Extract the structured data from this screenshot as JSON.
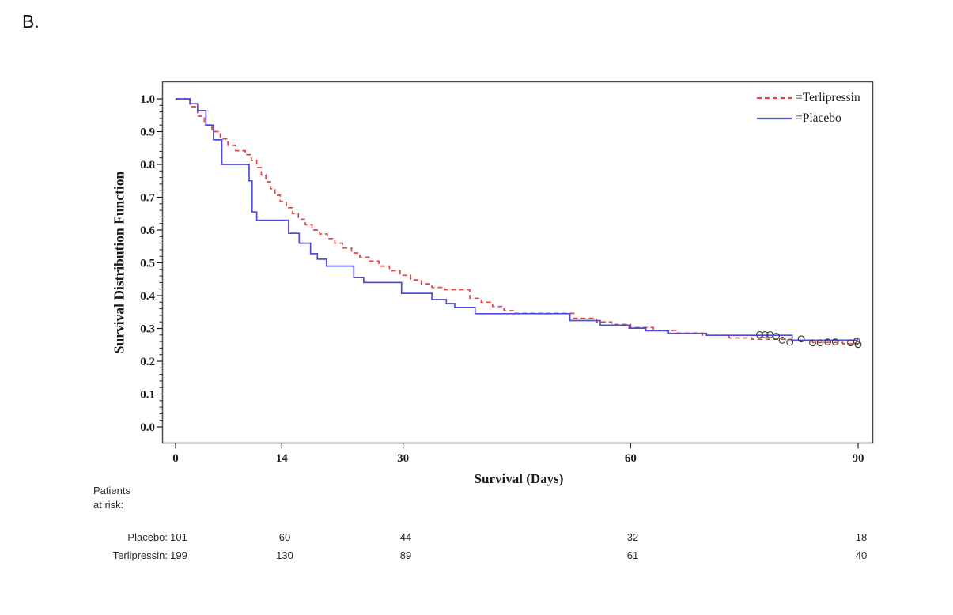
{
  "panel_label": "B.",
  "chart_data": {
    "type": "line",
    "subtype": "kaplan-meier-step-survival",
    "title": "",
    "xlabel": "Survival (Days)",
    "ylabel": "Survival Distribution Function",
    "xlim": [
      -1.8,
      91.9
    ],
    "ylim": [
      -0.05,
      1.05
    ],
    "x_end": 90,
    "grid": false,
    "xticks": [
      0,
      14,
      30,
      60,
      90
    ],
    "xtick_labels": [
      "0",
      "14",
      "30",
      "60",
      "90"
    ],
    "yticks": [
      0,
      0.1,
      0.2,
      0.3,
      0.4,
      0.5,
      0.6,
      0.7,
      0.8,
      0.9,
      1.0
    ],
    "ytick_labels": [
      "0.0",
      "0.1",
      "0.2",
      "0.3",
      "0.4",
      "0.5",
      "0.6",
      "0.7",
      "0.8",
      "0.9",
      "1.0"
    ],
    "legend_position": "top-right-inside",
    "legend": [
      {
        "label": "=Terlipressin",
        "color": "#e84343",
        "style": "dashed"
      },
      {
        "label": "=Placebo",
        "color": "#4d4dd8",
        "style": "solid"
      }
    ],
    "series": [
      {
        "name": "Terlipressin",
        "color": "#e84343",
        "style": "dashed",
        "step": true,
        "points": [
          [
            0,
            1.0
          ],
          [
            1.9,
            0.976
          ],
          [
            2.9,
            0.947
          ],
          [
            3.8,
            0.92
          ],
          [
            4.8,
            0.9
          ],
          [
            5.9,
            0.878
          ],
          [
            6.9,
            0.858
          ],
          [
            7.9,
            0.842
          ],
          [
            9.2,
            0.83
          ],
          [
            10.0,
            0.812
          ],
          [
            10.7,
            0.79
          ],
          [
            11.3,
            0.768
          ],
          [
            11.9,
            0.747
          ],
          [
            12.5,
            0.726
          ],
          [
            13.1,
            0.706
          ],
          [
            13.8,
            0.687
          ],
          [
            14.6,
            0.668
          ],
          [
            15.4,
            0.65
          ],
          [
            16.2,
            0.633
          ],
          [
            17.1,
            0.616
          ],
          [
            18.0,
            0.6
          ],
          [
            19.0,
            0.588
          ],
          [
            20.0,
            0.574
          ],
          [
            21.0,
            0.56
          ],
          [
            22.0,
            0.545
          ],
          [
            23.2,
            0.53
          ],
          [
            24.3,
            0.517
          ],
          [
            25.5,
            0.505
          ],
          [
            26.8,
            0.49
          ],
          [
            28.2,
            0.476
          ],
          [
            29.6,
            0.462
          ],
          [
            31.0,
            0.448
          ],
          [
            32.4,
            0.436
          ],
          [
            33.8,
            0.425
          ],
          [
            35.5,
            0.418
          ],
          [
            38.8,
            0.392
          ],
          [
            40.3,
            0.38
          ],
          [
            41.8,
            0.367
          ],
          [
            43.3,
            0.354
          ],
          [
            44.8,
            0.346
          ],
          [
            52.5,
            0.331
          ],
          [
            55.5,
            0.32
          ],
          [
            57.5,
            0.312
          ],
          [
            60,
            0.303
          ],
          [
            63,
            0.294
          ],
          [
            66,
            0.286
          ],
          [
            69.5,
            0.279
          ],
          [
            73,
            0.271
          ],
          [
            76,
            0.267
          ],
          [
            80.5,
            0.262
          ],
          [
            84,
            0.257
          ],
          [
            88,
            0.253
          ]
        ]
      },
      {
        "name": "Placebo",
        "color": "#4d4dd8",
        "style": "solid",
        "step": true,
        "points": [
          [
            0,
            1.0
          ],
          [
            1.9,
            0.985
          ],
          [
            2.9,
            0.964
          ],
          [
            4.0,
            0.92
          ],
          [
            5.0,
            0.875
          ],
          [
            6.1,
            0.8
          ],
          [
            9.7,
            0.75
          ],
          [
            10.1,
            0.655
          ],
          [
            10.7,
            0.63
          ],
          [
            14.9,
            0.59
          ],
          [
            16.3,
            0.56
          ],
          [
            17.8,
            0.528
          ],
          [
            18.7,
            0.511
          ],
          [
            19.9,
            0.49
          ],
          [
            23.5,
            0.455
          ],
          [
            24.8,
            0.44
          ],
          [
            29.8,
            0.407
          ],
          [
            33.8,
            0.388
          ],
          [
            35.7,
            0.376
          ],
          [
            36.8,
            0.364
          ],
          [
            39.5,
            0.345
          ],
          [
            52,
            0.324
          ],
          [
            56,
            0.31
          ],
          [
            59.8,
            0.301
          ],
          [
            62,
            0.293
          ],
          [
            65,
            0.285
          ],
          [
            70,
            0.279
          ],
          [
            81.3,
            0.264
          ]
        ]
      }
    ],
    "censor_marks": {
      "color": "#3f3f3f",
      "points": [
        [
          77,
          0.281
        ],
        [
          77.7,
          0.281
        ],
        [
          78.4,
          0.281
        ],
        [
          79.2,
          0.276
        ],
        [
          80,
          0.264
        ],
        [
          81,
          0.258
        ],
        [
          82.5,
          0.268
        ],
        [
          84,
          0.256
        ],
        [
          85,
          0.256
        ],
        [
          86,
          0.259
        ],
        [
          87,
          0.259
        ],
        [
          89,
          0.256
        ],
        [
          89.8,
          0.261
        ],
        [
          90,
          0.251
        ]
      ]
    }
  },
  "at_risk": {
    "header_line1": "Patients",
    "header_line2": "at risk:",
    "columns_days": [
      0,
      14,
      30,
      60,
      90
    ],
    "rows": [
      {
        "label": "Placebo:",
        "values": [
          "101",
          "60",
          "44",
          "32",
          "18"
        ]
      },
      {
        "label": "Terlipressin:",
        "values": [
          "199",
          "130",
          "89",
          "61",
          "40"
        ]
      }
    ]
  }
}
